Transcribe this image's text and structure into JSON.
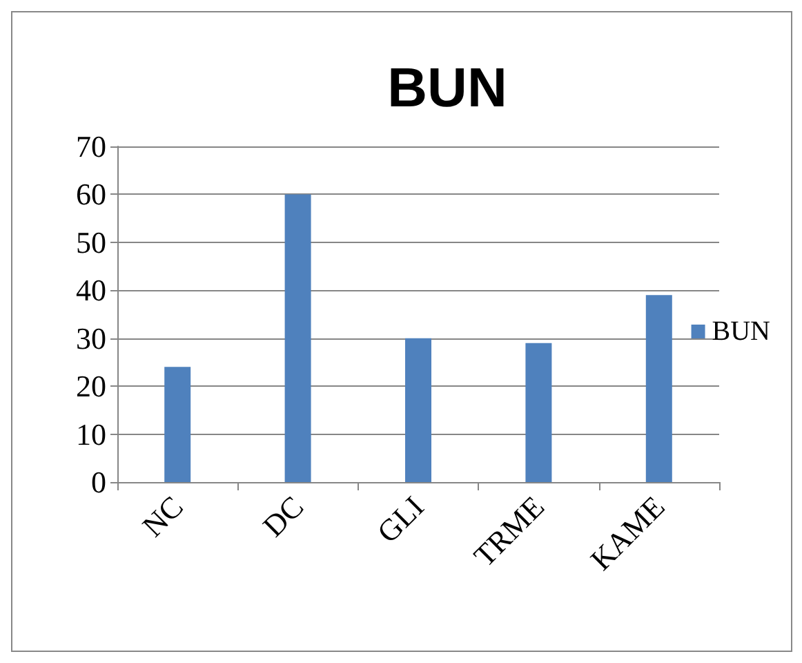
{
  "chart_data": {
    "type": "bar",
    "title": "BUN",
    "categories": [
      "NC",
      "DC",
      "GLI",
      "TRME",
      "KAME"
    ],
    "series": [
      {
        "name": "BUN",
        "color": "#4f81bd",
        "values": [
          24,
          60,
          30,
          29,
          39
        ]
      }
    ],
    "ylim": [
      0,
      70
    ],
    "yticks": [
      0,
      10,
      20,
      30,
      40,
      50,
      60,
      70
    ],
    "grid": "y",
    "legend": "right"
  }
}
